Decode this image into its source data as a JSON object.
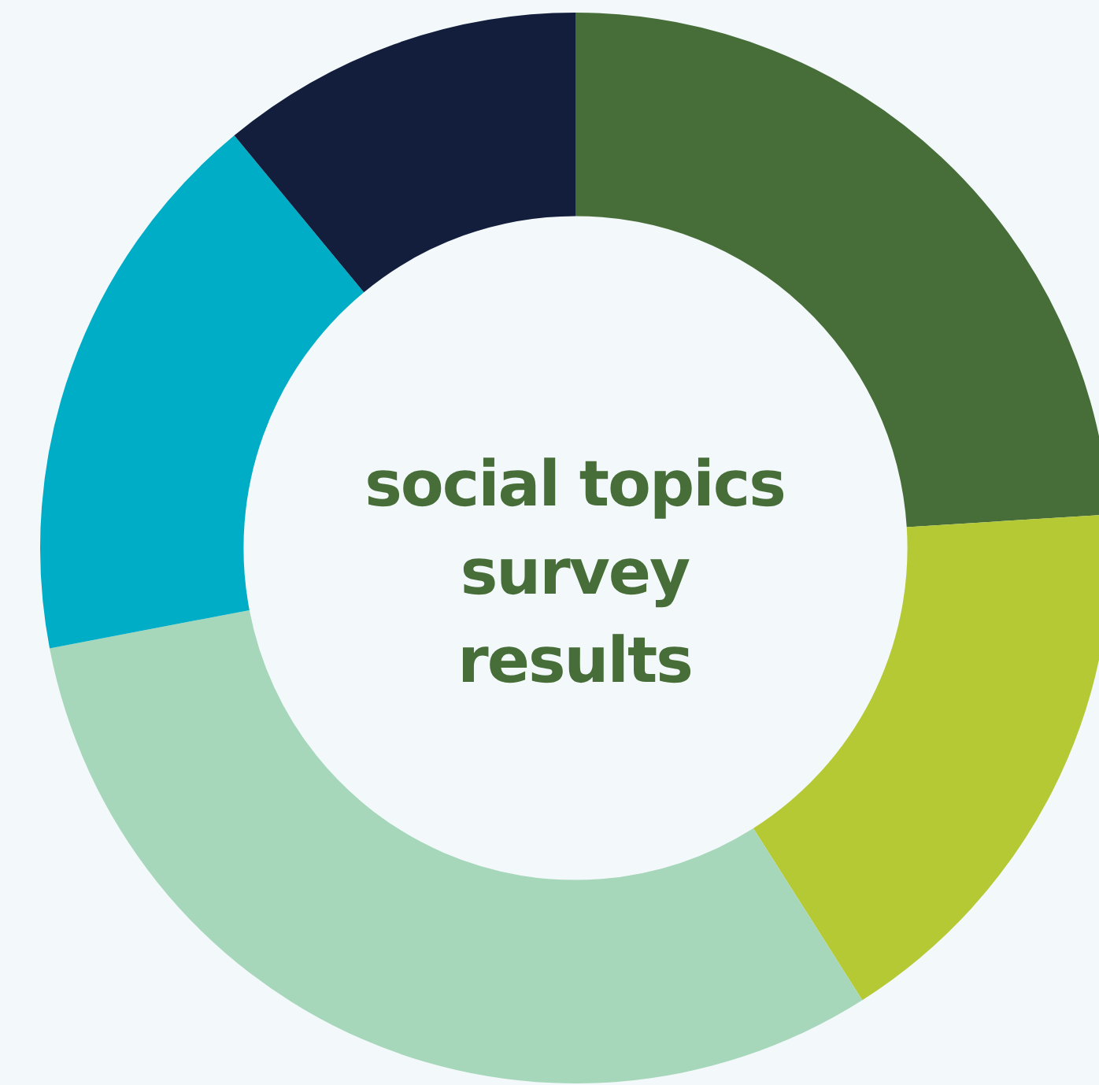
{
  "chart_data": {
    "type": "donut",
    "title": "social topics survey results",
    "categories": [
      null,
      null,
      null,
      null,
      null
    ],
    "values": [
      24,
      17,
      31,
      17,
      11
    ],
    "colors": [
      "#476e39",
      "#b5c934",
      "#a6d7bb",
      "#00adc6",
      "#131e3d"
    ],
    "legend": false
  }
}
